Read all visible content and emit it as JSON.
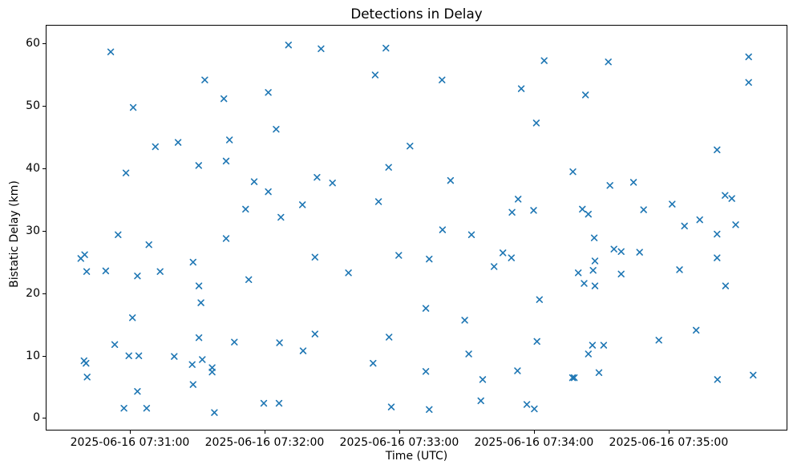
{
  "title": "Detections in Delay",
  "axes": {
    "xlabel": "Time (UTC)",
    "ylabel": "Bistatic Delay (km)"
  },
  "chart_data": {
    "type": "scatter",
    "title": "Detections in Delay",
    "xlabel": "Time (UTC)",
    "ylabel": "Bistatic Delay (km)",
    "marker": "x",
    "marker_color": "#1f77b4",
    "grid": false,
    "legend": "none",
    "x_unit": "seconds after 2025-06-16 07:30:00 UTC (derived from tick labels)",
    "xlim": [
      22.5,
      352.9
    ],
    "ylim": [
      -2.0,
      63.0
    ],
    "x_ticks": [
      {
        "t": 60,
        "label": "2025-06-16 07:31:00"
      },
      {
        "t": 120,
        "label": "2025-06-16 07:32:00"
      },
      {
        "t": 180,
        "label": "2025-06-16 07:33:00"
      },
      {
        "t": 240,
        "label": "2025-06-16 07:34:00"
      },
      {
        "t": 300,
        "label": "2025-06-16 07:35:00"
      }
    ],
    "y_ticks": [
      {
        "v": 0,
        "label": "0"
      },
      {
        "v": 10,
        "label": "10"
      },
      {
        "v": 20,
        "label": "20"
      },
      {
        "v": 30,
        "label": "30"
      },
      {
        "v": 40,
        "label": "40"
      },
      {
        "v": 50,
        "label": "50"
      },
      {
        "v": 60,
        "label": "60"
      }
    ],
    "points": [
      [
        51.1,
        58.8
      ],
      [
        61.1,
        49.9
      ],
      [
        93.0,
        54.3
      ],
      [
        101.5,
        51.3
      ],
      [
        71.0,
        43.6
      ],
      [
        81.1,
        44.3
      ],
      [
        104.0,
        44.7
      ],
      [
        90.3,
        40.6
      ],
      [
        102.5,
        41.3
      ],
      [
        57.9,
        39.4
      ],
      [
        130.3,
        59.9
      ],
      [
        144.8,
        59.3
      ],
      [
        173.7,
        59.4
      ],
      [
        168.9,
        55.1
      ],
      [
        121.3,
        52.3
      ],
      [
        124.8,
        46.4
      ],
      [
        184.4,
        43.7
      ],
      [
        174.9,
        40.3
      ],
      [
        143.0,
        38.7
      ],
      [
        149.9,
        37.8
      ],
      [
        115.0,
        38.0
      ],
      [
        121.3,
        36.4
      ],
      [
        136.5,
        34.3
      ],
      [
        170.4,
        34.8
      ],
      [
        111.2,
        33.6
      ],
      [
        126.9,
        32.3
      ],
      [
        244.2,
        57.4
      ],
      [
        272.8,
        57.2
      ],
      [
        198.7,
        54.3
      ],
      [
        234.0,
        52.9
      ],
      [
        262.6,
        51.9
      ],
      [
        240.7,
        47.4
      ],
      [
        257.0,
        39.6
      ],
      [
        202.5,
        38.2
      ],
      [
        273.5,
        37.4
      ],
      [
        232.6,
        35.2
      ],
      [
        229.9,
        33.1
      ],
      [
        239.5,
        33.4
      ],
      [
        261.2,
        33.6
      ],
      [
        263.9,
        32.8
      ],
      [
        335.3,
        58.0
      ],
      [
        335.3,
        53.9
      ],
      [
        321.2,
        43.1
      ],
      [
        284.0,
        37.9
      ],
      [
        324.8,
        35.8
      ],
      [
        327.8,
        35.3
      ],
      [
        301.2,
        34.4
      ],
      [
        288.5,
        33.5
      ],
      [
        313.5,
        31.9
      ],
      [
        306.7,
        30.9
      ],
      [
        329.5,
        31.1
      ],
      [
        54.4,
        29.5
      ],
      [
        68.1,
        27.9
      ],
      [
        102.5,
        28.9
      ],
      [
        39.5,
        26.3
      ],
      [
        37.8,
        25.7
      ],
      [
        87.8,
        25.1
      ],
      [
        40.4,
        23.6
      ],
      [
        48.9,
        23.7
      ],
      [
        63.0,
        22.9
      ],
      [
        73.1,
        23.6
      ],
      [
        90.4,
        21.3
      ],
      [
        91.3,
        18.6
      ],
      [
        60.8,
        16.2
      ],
      [
        90.4,
        13.0
      ],
      [
        52.9,
        11.9
      ],
      [
        106.2,
        12.3
      ],
      [
        59.2,
        10.1
      ],
      [
        63.6,
        10.1
      ],
      [
        79.4,
        10.0
      ],
      [
        39.2,
        9.3
      ],
      [
        40.1,
        8.9
      ],
      [
        87.4,
        8.7
      ],
      [
        91.9,
        9.5
      ],
      [
        96.3,
        8.2
      ],
      [
        96.3,
        7.5
      ],
      [
        40.6,
        6.7
      ],
      [
        87.8,
        5.5
      ],
      [
        63.0,
        4.4
      ],
      [
        57.0,
        1.7
      ],
      [
        67.1,
        1.7
      ],
      [
        97.3,
        1.0
      ],
      [
        142.1,
        25.9
      ],
      [
        179.4,
        26.2
      ],
      [
        193.0,
        25.6
      ],
      [
        157.0,
        23.4
      ],
      [
        112.6,
        22.3
      ],
      [
        191.5,
        17.7
      ],
      [
        142.1,
        13.6
      ],
      [
        126.3,
        12.2
      ],
      [
        136.8,
        10.9
      ],
      [
        175.1,
        13.1
      ],
      [
        168.0,
        8.9
      ],
      [
        191.5,
        7.6
      ],
      [
        119.3,
        2.5
      ],
      [
        126.1,
        2.5
      ],
      [
        176.1,
        1.9
      ],
      [
        193.0,
        1.5
      ],
      [
        198.9,
        30.3
      ],
      [
        211.8,
        29.5
      ],
      [
        266.5,
        29.0
      ],
      [
        225.8,
        26.6
      ],
      [
        229.6,
        25.8
      ],
      [
        275.3,
        27.2
      ],
      [
        278.5,
        26.8
      ],
      [
        221.9,
        24.4
      ],
      [
        266.8,
        25.3
      ],
      [
        259.4,
        23.4
      ],
      [
        266.0,
        23.8
      ],
      [
        278.5,
        23.2
      ],
      [
        262.0,
        21.7
      ],
      [
        266.8,
        21.3
      ],
      [
        242.1,
        19.1
      ],
      [
        208.8,
        15.8
      ],
      [
        241.0,
        12.4
      ],
      [
        210.6,
        10.4
      ],
      [
        265.7,
        11.8
      ],
      [
        270.7,
        11.8
      ],
      [
        263.9,
        10.4
      ],
      [
        232.3,
        7.7
      ],
      [
        268.6,
        7.4
      ],
      [
        256.8,
        6.6
      ],
      [
        257.6,
        6.6
      ],
      [
        216.8,
        6.3
      ],
      [
        216.0,
        2.9
      ],
      [
        236.5,
        2.3
      ],
      [
        239.8,
        1.6
      ],
      [
        321.2,
        29.6
      ],
      [
        286.7,
        26.7
      ],
      [
        321.2,
        25.8
      ],
      [
        304.5,
        23.9
      ],
      [
        325.0,
        21.3
      ],
      [
        311.9,
        14.2
      ],
      [
        295.3,
        12.6
      ],
      [
        321.4,
        6.3
      ],
      [
        337.3,
        7.0
      ]
    ]
  }
}
